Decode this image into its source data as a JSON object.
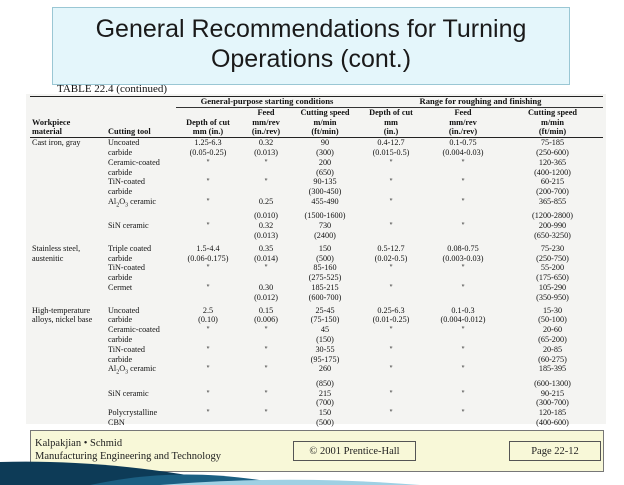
{
  "title": [
    "General Recommendations for Turning",
    "Operations (cont.)"
  ],
  "table_label": "TABLE 22.4 (continued)",
  "group_headers": {
    "general": "General-purpose starting conditions",
    "range": "Range for roughing and finishing"
  },
  "column_headers": [
    [
      "",
      "",
      "",
      "Feed",
      "Cutting speed",
      "Depth of cut",
      "Feed",
      "Cutting speed"
    ],
    [
      "Workpiece",
      "",
      "Depth of cut",
      "mm/rev",
      "m/min",
      "mm",
      "mm/rev",
      "m/min"
    ],
    [
      "material",
      "Cutting tool",
      "mm (in.)",
      "(in./rev)",
      "(ft/min)",
      "(in.)",
      "(in./rev)",
      "(ft/min)"
    ]
  ],
  "rows": [
    [
      "Cast iron, gray",
      "Uncoated",
      "1.25-6.3",
      "0.32",
      "90",
      "0.4-12.7",
      "0.1-0.75",
      "75-185"
    ],
    [
      "",
      "carbide",
      "(0.05-0.25)",
      "(0.013)",
      "(300)",
      "(0.015-0.5)",
      "(0.004-0.03)",
      "(250-600)"
    ],
    [
      "",
      "Ceramic-coated",
      "\"",
      "\"",
      "200",
      "\"",
      "\"",
      "120-365"
    ],
    [
      "",
      "carbide",
      "",
      "",
      "(650)",
      "",
      "",
      "(400-1200)"
    ],
    [
      "",
      "TiN-coated",
      "\"",
      "\"",
      "90-135",
      "\"",
      "\"",
      "60-215"
    ],
    [
      "",
      "carbide",
      "",
      "",
      "(300-450)",
      "",
      "",
      "(200-700)"
    ],
    [
      "",
      "Al2O3 ceramic",
      "\"",
      "0.25",
      "455-490",
      "\"",
      "\"",
      "365-855"
    ],
    [
      "",
      "",
      "",
      "(0.010)",
      "(1500-1600)",
      "",
      "",
      "(1200-2800)"
    ],
    [
      "",
      "SiN ceramic",
      "\"",
      "0.32",
      "730",
      "\"",
      "\"",
      "200-990"
    ],
    [
      "",
      "",
      "",
      "(0.013)",
      "(2400)",
      "",
      "",
      "(650-3250)"
    ],
    [
      "Stainless steel,",
      "Triple coated",
      "1.5-4.4",
      "0.35",
      "150",
      "0.5-12.7",
      "0.08-0.75",
      "75-230"
    ],
    [
      "austenitic",
      "carbide",
      "(0.06-0.175)",
      "(0.014)",
      "(500)",
      "(0.02-0.5)",
      "(0.003-0.03)",
      "(250-750)"
    ],
    [
      "",
      "TiN-coated",
      "\"",
      "\"",
      "85-160",
      "\"",
      "\"",
      "55-200"
    ],
    [
      "",
      "carbide",
      "",
      "",
      "(275-525)",
      "",
      "",
      "(175-650)"
    ],
    [
      "",
      "Cermet",
      "\"",
      "0.30",
      "185-215",
      "\"",
      "\"",
      "105-290"
    ],
    [
      "",
      "",
      "",
      "(0.012)",
      "(600-700)",
      "",
      "",
      "(350-950)"
    ],
    [
      "High-temperature",
      "Uncoated",
      "2.5",
      "0.15",
      "25-45",
      "0.25-6.3",
      "0.1-0.3",
      "15-30"
    ],
    [
      "alloys, nickel base",
      "carbide",
      "(0.10)",
      "(0.006)",
      "(75-150)",
      "(0.01-0.25)",
      "(0.004-0.012)",
      "(50-100)"
    ],
    [
      "",
      "Ceramic-coated",
      "\"",
      "\"",
      "45",
      "\"",
      "\"",
      "20-60"
    ],
    [
      "",
      "carbide",
      "",
      "",
      "(150)",
      "",
      "",
      "(65-200)"
    ],
    [
      "",
      "TiN-coated",
      "\"",
      "\"",
      "30-55",
      "\"",
      "\"",
      "20-85"
    ],
    [
      "",
      "carbide",
      "",
      "",
      "(95-175)",
      "",
      "",
      "(60-275)"
    ],
    [
      "",
      "Al2O3 ceramic",
      "\"",
      "\"",
      "260",
      "\"",
      "\"",
      "185-395"
    ],
    [
      "",
      "",
      "",
      "",
      "(850)",
      "",
      "",
      "(600-1300)"
    ],
    [
      "",
      "SiN ceramic",
      "\"",
      "\"",
      "215",
      "\"",
      "\"",
      "90-215"
    ],
    [
      "",
      "",
      "",
      "",
      "(700)",
      "",
      "",
      "(300-700)"
    ],
    [
      "",
      "Polycrystalline",
      "\"",
      "\"",
      "150",
      "\"",
      "\"",
      "120-185"
    ],
    [
      "",
      "CBN",
      "",
      "",
      "(500)",
      "",
      "",
      "(400-600)"
    ]
  ],
  "group_start_rows": [
    0,
    10,
    16
  ],
  "footer": {
    "left_line1": "Kalpakjian • Schmid",
    "left_line2": "Manufacturing Engineering and Technology",
    "copyright": "© 2001 Prentice-Hall",
    "page": "Page 22-12"
  },
  "colors": {
    "title_bg": "#e4f6fb",
    "footer_bg": "#f8f8d8",
    "deco_dark": "#0d3b57",
    "deco_light": "#9fd0e3"
  }
}
